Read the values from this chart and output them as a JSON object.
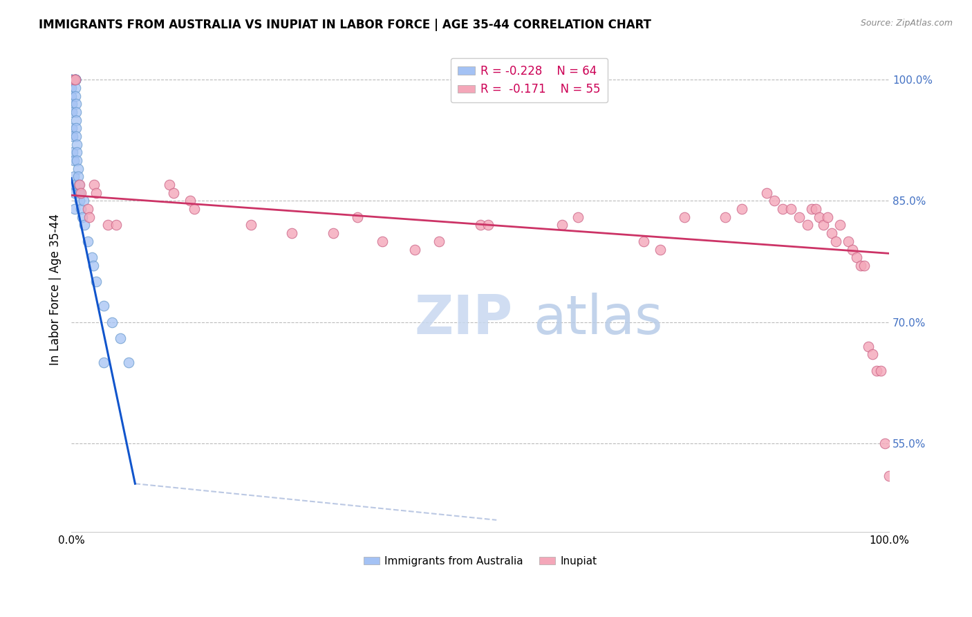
{
  "title": "IMMIGRANTS FROM AUSTRALIA VS INUPIAT IN LABOR FORCE | AGE 35-44 CORRELATION CHART",
  "source_text": "Source: ZipAtlas.com",
  "ylabel": "In Labor Force | Age 35-44",
  "blue_color": "#a4c2f4",
  "pink_color": "#f4a7b9",
  "blue_line_color": "#1155cc",
  "pink_line_color": "#cc3366",
  "right_axis_color": "#4472c4",
  "grid_color": "#bbbbbb",
  "xlim": [
    0.0,
    1.0
  ],
  "ylim": [
    0.44,
    1.04
  ],
  "yticks": [
    0.55,
    0.7,
    0.85,
    1.0
  ],
  "ytick_labels": [
    "55.0%",
    "70.0%",
    "85.0%",
    "100.0%"
  ],
  "australia_x": [
    0.0,
    0.0,
    0.0,
    0.0,
    0.0,
    0.001,
    0.001,
    0.001,
    0.002,
    0.002,
    0.003,
    0.003,
    0.004,
    0.004,
    0.004,
    0.005,
    0.005,
    0.005,
    0.005,
    0.005,
    0.005,
    0.005,
    0.005,
    0.006,
    0.006,
    0.006,
    0.006,
    0.006,
    0.007,
    0.007,
    0.007,
    0.008,
    0.008,
    0.009,
    0.009,
    0.01,
    0.01,
    0.012,
    0.013,
    0.015,
    0.016,
    0.02,
    0.025,
    0.027,
    0.03,
    0.04,
    0.04,
    0.05,
    0.06,
    0.07
  ],
  "australia_y": [
    1.0,
    1.0,
    1.0,
    0.99,
    0.98,
    0.97,
    0.96,
    0.94,
    0.93,
    0.91,
    0.9,
    0.88,
    0.87,
    0.86,
    0.84,
    1.0,
    1.0,
    1.0,
    1.0,
    1.0,
    1.0,
    0.99,
    0.98,
    0.97,
    0.96,
    0.95,
    0.94,
    0.93,
    0.92,
    0.91,
    0.9,
    0.89,
    0.88,
    0.87,
    0.86,
    0.86,
    0.85,
    0.84,
    0.83,
    0.85,
    0.82,
    0.8,
    0.78,
    0.77,
    0.75,
    0.72,
    0.65,
    0.7,
    0.68,
    0.65
  ],
  "inupiat_x": [
    0.003,
    0.005,
    0.01,
    0.012,
    0.02,
    0.022,
    0.028,
    0.03,
    0.045,
    0.055,
    0.12,
    0.125,
    0.145,
    0.15,
    0.22,
    0.27,
    0.32,
    0.35,
    0.38,
    0.42,
    0.45,
    0.5,
    0.51,
    0.6,
    0.62,
    0.7,
    0.72,
    0.75,
    0.8,
    0.82,
    0.85,
    0.86,
    0.87,
    0.88,
    0.89,
    0.9,
    0.905,
    0.91,
    0.915,
    0.92,
    0.925,
    0.93,
    0.935,
    0.94,
    0.95,
    0.955,
    0.96,
    0.965,
    0.97,
    0.975,
    0.98,
    0.985,
    0.99,
    0.995,
    1.0
  ],
  "inupiat_y": [
    1.0,
    1.0,
    0.87,
    0.86,
    0.84,
    0.83,
    0.87,
    0.86,
    0.82,
    0.82,
    0.87,
    0.86,
    0.85,
    0.84,
    0.82,
    0.81,
    0.81,
    0.83,
    0.8,
    0.79,
    0.8,
    0.82,
    0.82,
    0.82,
    0.83,
    0.8,
    0.79,
    0.83,
    0.83,
    0.84,
    0.86,
    0.85,
    0.84,
    0.84,
    0.83,
    0.82,
    0.84,
    0.84,
    0.83,
    0.82,
    0.83,
    0.81,
    0.8,
    0.82,
    0.8,
    0.79,
    0.78,
    0.77,
    0.77,
    0.67,
    0.66,
    0.64,
    0.64,
    0.55,
    0.51
  ],
  "blue_trendline_x": [
    0.0,
    0.078
  ],
  "blue_trendline_y": [
    0.878,
    0.5
  ],
  "pink_trendline_x": [
    0.0,
    1.0
  ],
  "pink_trendline_y": [
    0.857,
    0.785
  ],
  "dashed_line_x": [
    0.078,
    0.52
  ],
  "dashed_line_y": [
    0.5,
    0.455
  ]
}
